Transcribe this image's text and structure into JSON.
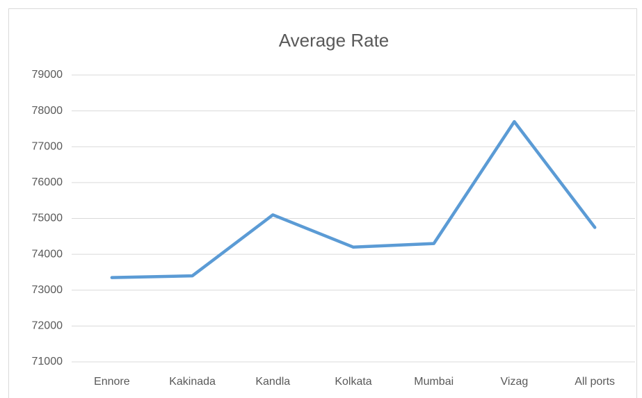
{
  "chart_data": {
    "type": "line",
    "title": "Average Rate",
    "categories": [
      "Ennore",
      "Kakinada",
      "Kandla",
      "Kolkata",
      "Mumbai",
      "Vizag",
      "All ports"
    ],
    "series": [
      {
        "name": "Average Rate",
        "color": "#5b9bd5",
        "values": [
          73350,
          73400,
          75100,
          74200,
          74300,
          77700,
          74750
        ]
      }
    ],
    "ylim": [
      71000,
      79000
    ],
    "yticks": [
      71000,
      72000,
      73000,
      74000,
      75000,
      76000,
      77000,
      78000,
      79000
    ],
    "grid": true
  }
}
